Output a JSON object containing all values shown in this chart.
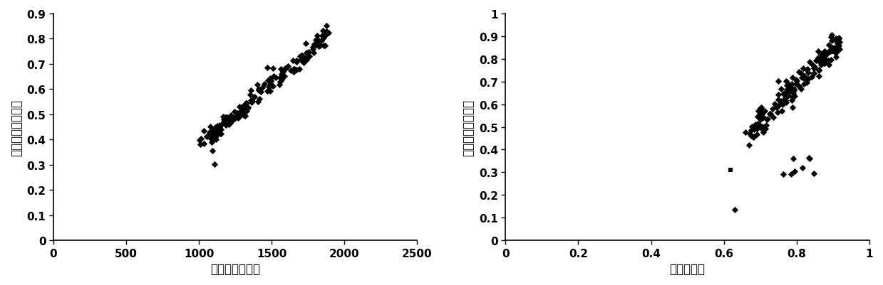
{
  "plot1": {
    "xlabel": "国家利用等指数",
    "ylabel": "总分值（因素法）",
    "xlim": [
      0,
      2500
    ],
    "ylim": [
      0,
      0.9
    ],
    "xticks": [
      0,
      500,
      1000,
      1500,
      2000,
      2500
    ],
    "yticks": [
      0,
      0.1,
      0.2,
      0.3,
      0.4,
      0.5,
      0.6,
      0.7,
      0.8,
      0.9
    ],
    "marker": "D",
    "color": "black",
    "markersize": 22
  },
  "plot2": {
    "xlabel": "地力总指数",
    "ylabel": "总分值（因素法）",
    "xlim": [
      0,
      1
    ],
    "ylim": [
      0,
      1
    ],
    "xticks": [
      0,
      0.2,
      0.4,
      0.6,
      0.8,
      1.0
    ],
    "yticks": [
      0,
      0.1,
      0.2,
      0.3,
      0.4,
      0.5,
      0.6,
      0.7,
      0.8,
      0.9,
      1.0
    ],
    "marker": "D",
    "color": "black",
    "markersize": 22
  },
  "background_color": "#ffffff",
  "font_color": "#000000",
  "label_fontsize": 12,
  "tick_fontsize": 11,
  "tick_fontweight": "bold"
}
